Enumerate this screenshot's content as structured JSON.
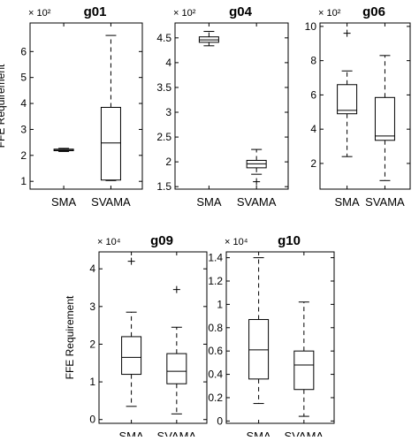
{
  "figure": {
    "ylabel": "FFE Requirement",
    "line_color": "#000000",
    "background": "#ffffff"
  },
  "chart_data": [
    {
      "type": "box",
      "title": "g01",
      "multiplier": "× 10²",
      "ylabel": "FFE Requirement",
      "ylim": [
        0.7,
        7.1
      ],
      "yticks": [
        1,
        2,
        3,
        4,
        5,
        6
      ],
      "ytick_labels": [
        "1",
        "2",
        "3",
        "4",
        "5",
        "6"
      ],
      "categories": [
        "SMA",
        "SVAMA"
      ],
      "boxes": [
        {
          "name": "SMA",
          "whisker_low": 2.15,
          "q1": 2.18,
          "median": 2.2,
          "q3": 2.24,
          "whisker_high": 2.27,
          "outliers": []
        },
        {
          "name": "SVAMA",
          "whisker_low": 1.03,
          "q1": 1.05,
          "median": 2.48,
          "q3": 3.85,
          "whisker_high": 6.62,
          "outliers": []
        }
      ]
    },
    {
      "type": "box",
      "title": "g04",
      "multiplier": "× 10²",
      "ylabel": "",
      "ylim": [
        1.45,
        4.8
      ],
      "yticks": [
        1.5,
        2,
        2.5,
        3,
        3.5,
        4,
        4.5
      ],
      "ytick_labels": [
        "1.5",
        "2",
        "2.5",
        "3",
        "3.5",
        "4",
        "4.5"
      ],
      "categories": [
        "SMA",
        "SVAMA"
      ],
      "boxes": [
        {
          "name": "SMA",
          "whisker_low": 4.34,
          "q1": 4.41,
          "median": 4.46,
          "q3": 4.52,
          "whisker_high": 4.63,
          "outliers": []
        },
        {
          "name": "SVAMA",
          "whisker_low": 1.75,
          "q1": 1.88,
          "median": 1.96,
          "q3": 2.03,
          "whisker_high": 2.25,
          "outliers": [
            1.6
          ]
        }
      ]
    },
    {
      "type": "box",
      "title": "g06",
      "multiplier": "× 10²",
      "ylabel": "",
      "ylim": [
        0.5,
        10.2
      ],
      "yticks": [
        2,
        4,
        6,
        8,
        10
      ],
      "ytick_labels": [
        "2",
        "4",
        "6",
        "8",
        "10"
      ],
      "categories": [
        "SMA",
        "SVAMA"
      ],
      "boxes": [
        {
          "name": "SMA",
          "whisker_low": 2.4,
          "q1": 4.9,
          "median": 5.1,
          "q3": 6.6,
          "whisker_high": 7.4,
          "outliers": [
            9.6
          ]
        },
        {
          "name": "SVAMA",
          "whisker_low": 1.0,
          "q1": 3.35,
          "median": 3.6,
          "q3": 5.85,
          "whisker_high": 8.3,
          "outliers": []
        }
      ]
    },
    {
      "type": "box",
      "title": "g09",
      "multiplier": "× 10⁴",
      "ylabel": "FFE Requirement",
      "ylim": [
        -0.1,
        4.45
      ],
      "yticks": [
        0,
        1,
        2,
        3,
        4
      ],
      "ytick_labels": [
        "0",
        "1",
        "2",
        "3",
        "4"
      ],
      "categories": [
        "SMA",
        "SVAMA"
      ],
      "boxes": [
        {
          "name": "SMA",
          "whisker_low": 0.35,
          "q1": 1.2,
          "median": 1.65,
          "q3": 2.2,
          "whisker_high": 2.85,
          "outliers": [
            4.2
          ]
        },
        {
          "name": "SVAMA",
          "whisker_low": 0.15,
          "q1": 0.95,
          "median": 1.28,
          "q3": 1.75,
          "whisker_high": 2.45,
          "outliers": [
            3.45
          ]
        }
      ]
    },
    {
      "type": "box",
      "title": "g10",
      "multiplier": "× 10⁴",
      "ylabel": "",
      "ylim": [
        -0.02,
        1.45
      ],
      "yticks": [
        0,
        0.2,
        0.4,
        0.6,
        0.8,
        1,
        1.2,
        1.4
      ],
      "ytick_labels": [
        "0",
        "0.2",
        "0.4",
        "0.6",
        "0.8",
        "1",
        "1.2",
        "1.4"
      ],
      "categories": [
        "SMA",
        "SVAMA"
      ],
      "boxes": [
        {
          "name": "SMA",
          "whisker_low": 0.15,
          "q1": 0.36,
          "median": 0.61,
          "q3": 0.87,
          "whisker_high": 1.4,
          "outliers": []
        },
        {
          "name": "SVAMA",
          "whisker_low": 0.04,
          "q1": 0.27,
          "median": 0.48,
          "q3": 0.6,
          "whisker_high": 1.02,
          "outliers": []
        }
      ]
    }
  ]
}
